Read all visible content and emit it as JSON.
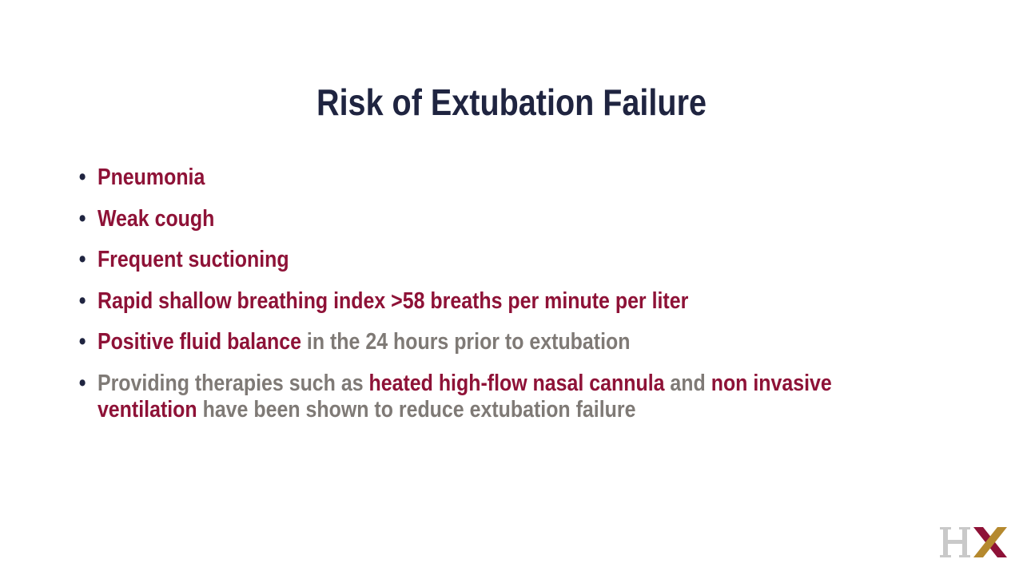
{
  "slide": {
    "title": "Risk of Extubation Failure",
    "bullet_symbol": "•",
    "bullets": [
      {
        "parts": [
          "Pneumonia"
        ]
      },
      {
        "parts": [
          "Weak cough"
        ]
      },
      {
        "parts": [
          "Frequent suctioning"
        ]
      },
      {
        "parts": [
          "Rapid shallow breathing index >58 breaths per minute per liter"
        ]
      },
      {
        "parts": [
          "Positive fluid balance",
          " in the 24 hours prior to extubation"
        ]
      },
      {
        "parts": [
          "Providing therapies such as ",
          "heated high-flow nasal cannula",
          " and ",
          "non invasive ventilation",
          " have been shown to reduce extubation failure"
        ]
      }
    ]
  },
  "logo": {
    "text": "HX",
    "icon": "hx-logo",
    "colors": {
      "h": "#c9c9c9",
      "x_gold": "#b5892e",
      "x_red": "#8e1237"
    }
  },
  "colors": {
    "title": "#1f2440",
    "highlight": "#8e1237",
    "muted": "#7f7a76",
    "background": "#ffffff"
  }
}
